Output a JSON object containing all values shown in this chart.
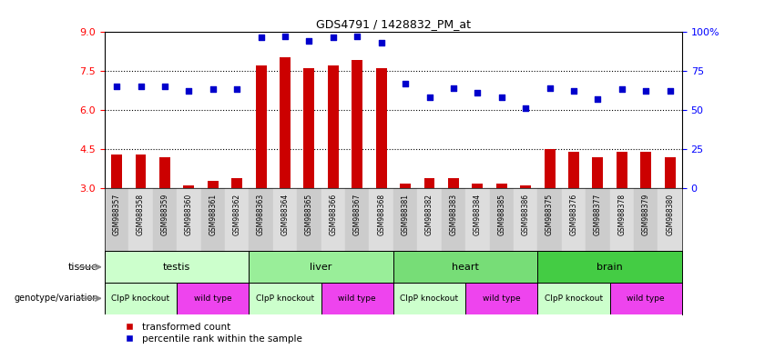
{
  "title": "GDS4791 / 1428832_PM_at",
  "samples": [
    "GSM988357",
    "GSM988358",
    "GSM988359",
    "GSM988360",
    "GSM988361",
    "GSM988362",
    "GSM988363",
    "GSM988364",
    "GSM988365",
    "GSM988366",
    "GSM988367",
    "GSM988368",
    "GSM988381",
    "GSM988382",
    "GSM988383",
    "GSM988384",
    "GSM988385",
    "GSM988386",
    "GSM988375",
    "GSM988376",
    "GSM988377",
    "GSM988378",
    "GSM988379",
    "GSM988380"
  ],
  "transformed_count": [
    4.3,
    4.3,
    4.2,
    3.1,
    3.3,
    3.4,
    7.7,
    8.0,
    7.6,
    7.7,
    7.9,
    7.6,
    3.2,
    3.4,
    3.4,
    3.2,
    3.2,
    3.1,
    4.5,
    4.4,
    4.2,
    4.4,
    4.4,
    4.2
  ],
  "percentile_rank": [
    65,
    65,
    65,
    62,
    63,
    63,
    96,
    97,
    94,
    96,
    97,
    93,
    67,
    58,
    64,
    61,
    58,
    51,
    64,
    62,
    57,
    63,
    62,
    62
  ],
  "ylim_left": [
    3,
    9
  ],
  "ylim_right": [
    0,
    100
  ],
  "yticks_left": [
    3,
    4.5,
    6,
    7.5,
    9
  ],
  "yticks_right": [
    0,
    25,
    50,
    75,
    100
  ],
  "bar_color": "#cc0000",
  "dot_color": "#0000cc",
  "tissues": [
    {
      "label": "testis",
      "start": 0,
      "end": 6,
      "color": "#ccffcc"
    },
    {
      "label": "liver",
      "start": 6,
      "end": 12,
      "color": "#99ee99"
    },
    {
      "label": "heart",
      "start": 12,
      "end": 18,
      "color": "#77dd77"
    },
    {
      "label": "brain",
      "start": 18,
      "end": 24,
      "color": "#44cc44"
    }
  ],
  "genotypes": [
    {
      "label": "ClpP knockout",
      "start": 0,
      "end": 3,
      "color": "#ccffcc"
    },
    {
      "label": "wild type",
      "start": 3,
      "end": 6,
      "color": "#dd44dd"
    },
    {
      "label": "ClpP knockout",
      "start": 6,
      "end": 9,
      "color": "#ccffcc"
    },
    {
      "label": "wild type",
      "start": 9,
      "end": 12,
      "color": "#dd44dd"
    },
    {
      "label": "ClpP knockout",
      "start": 12,
      "end": 15,
      "color": "#ccffcc"
    },
    {
      "label": "wild type",
      "start": 15,
      "end": 18,
      "color": "#dd44dd"
    },
    {
      "label": "ClpP knockout",
      "start": 18,
      "end": 21,
      "color": "#ccffcc"
    },
    {
      "label": "wild type",
      "start": 21,
      "end": 24,
      "color": "#dd44dd"
    }
  ],
  "hline_positions": [
    4.5,
    6.0,
    7.5
  ],
  "background_color": "#ffffff",
  "xticklabel_bg": "#dddddd",
  "legend_labels": [
    "transformed count",
    "percentile rank within the sample"
  ],
  "legend_colors": [
    "#cc0000",
    "#0000cc"
  ]
}
